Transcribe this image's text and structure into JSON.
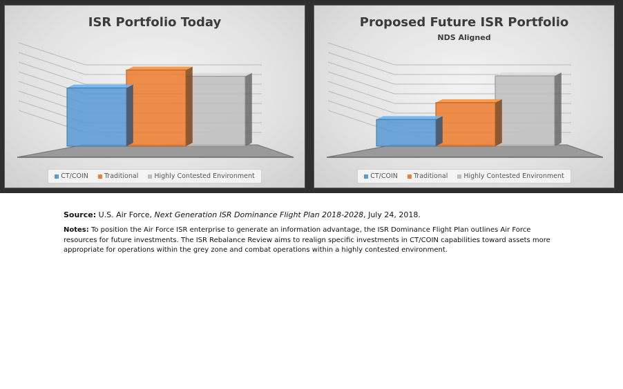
{
  "chart_data": [
    {
      "type": "bar",
      "title": "ISR Portfolio Today",
      "subtitle": "",
      "categories": [
        "CT/COIN",
        "Traditional",
        "Highly Contested Environment"
      ],
      "values": [
        65,
        85,
        78
      ],
      "ylim": [
        0,
        100
      ],
      "grid": true,
      "legend": "bottom",
      "colors": [
        "#5b9bd5",
        "#ed7d31",
        "#bfbfbf"
      ]
    },
    {
      "type": "bar",
      "title": "Proposed Future ISR Portfolio",
      "subtitle": "NDS Aligned",
      "categories": [
        "CT/COIN",
        "Traditional",
        "Highly Contested Environment"
      ],
      "values": [
        38,
        62,
        100
      ],
      "ylim": [
        0,
        100
      ],
      "grid": true,
      "legend": "bottom",
      "colors": [
        "#5b9bd5",
        "#ed7d31",
        "#bfbfbf"
      ]
    }
  ],
  "caption": {
    "source_label": "Source:",
    "source_pre": "U.S. Air Force,",
    "source_title": "Next Generation ISR Dominance Flight Plan 2018-2028",
    "source_post": ", July 24, 2018.",
    "notes_label": "Notes:",
    "notes_text": "To position the Air Force ISR enterprise to generate an information advantage, the ISR Dominance Flight Plan outlines Air Force resources for future investments. The ISR Rebalance Review aims to realign specific investments in CT/COIN capabilities toward assets more appropriate for operations within the grey zone and combat operations within a highly contested environment."
  }
}
